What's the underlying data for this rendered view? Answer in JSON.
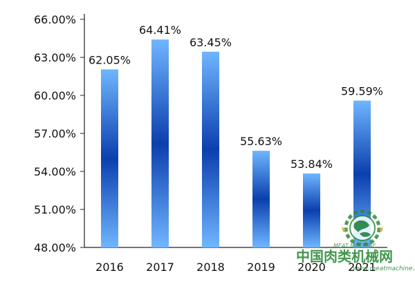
{
  "chart_data": {
    "type": "bar",
    "categories": [
      "2016",
      "2017",
      "2018",
      "2019",
      "2020",
      "2021"
    ],
    "values": [
      62.05,
      64.41,
      63.45,
      55.63,
      53.84,
      59.59
    ],
    "value_labels": [
      "62.05%",
      "64.41%",
      "63.45%",
      "55.63%",
      "53.84%",
      "59.59%"
    ],
    "title": "",
    "xlabel": "",
    "ylabel": "",
    "ylim": [
      48,
      66
    ],
    "yticks": [
      48,
      51,
      54,
      57,
      60,
      63,
      66
    ],
    "ytick_labels": [
      "48.00%",
      "51.00%",
      "54.00%",
      "57.00%",
      "60.00%",
      "63.00%",
      "66.00%"
    ],
    "grid": false,
    "legend": "none",
    "bar_gradient": [
      "#6fb6ff",
      "#0b3fae",
      "#6fb6ff"
    ]
  },
  "watermark": {
    "text": "中国肉类机械网",
    "url": "www.meatmachine.cn",
    "logo_text": "MEAT MACHINE",
    "color": "#2e8b3a",
    "logo_icon": "gear-globe-icon"
  }
}
